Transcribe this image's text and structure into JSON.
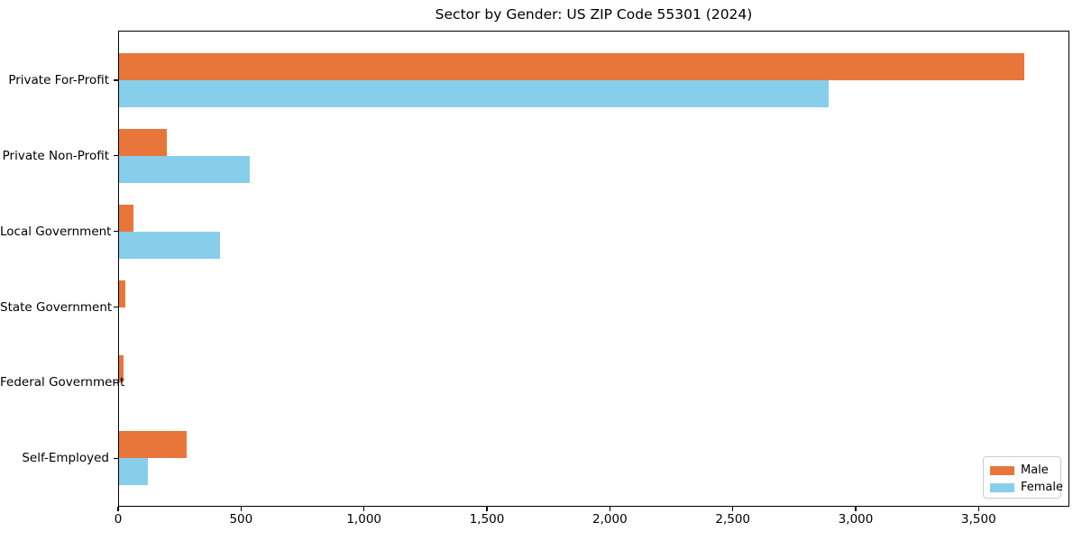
{
  "chart_data": {
    "type": "bar",
    "orientation": "horizontal",
    "title": "Sector by Gender: US ZIP Code 55301 (2024)",
    "categories": [
      "Private For-Profit",
      "Private Non-Profit",
      "Local Government",
      "State Government",
      "Federal Government",
      "Self-Employed"
    ],
    "series": [
      {
        "name": "Male",
        "color": "#e8763b",
        "values": [
          3683,
          195,
          58,
          25,
          20,
          274
        ]
      },
      {
        "name": "Female",
        "color": "#87ceeb",
        "values": [
          2885,
          532,
          410,
          0,
          0,
          119
        ]
      }
    ],
    "xlabel": "",
    "ylabel": "",
    "xlim": [
      0,
      3869
    ],
    "xticks": [
      0,
      500,
      1000,
      1500,
      2000,
      2500,
      3000,
      3500
    ],
    "xtick_labels": [
      "0",
      "500",
      "1,000",
      "1,500",
      "2,000",
      "2,500",
      "3,000",
      "3,500"
    ],
    "grid": false,
    "legend": {
      "position": "lower right"
    }
  }
}
